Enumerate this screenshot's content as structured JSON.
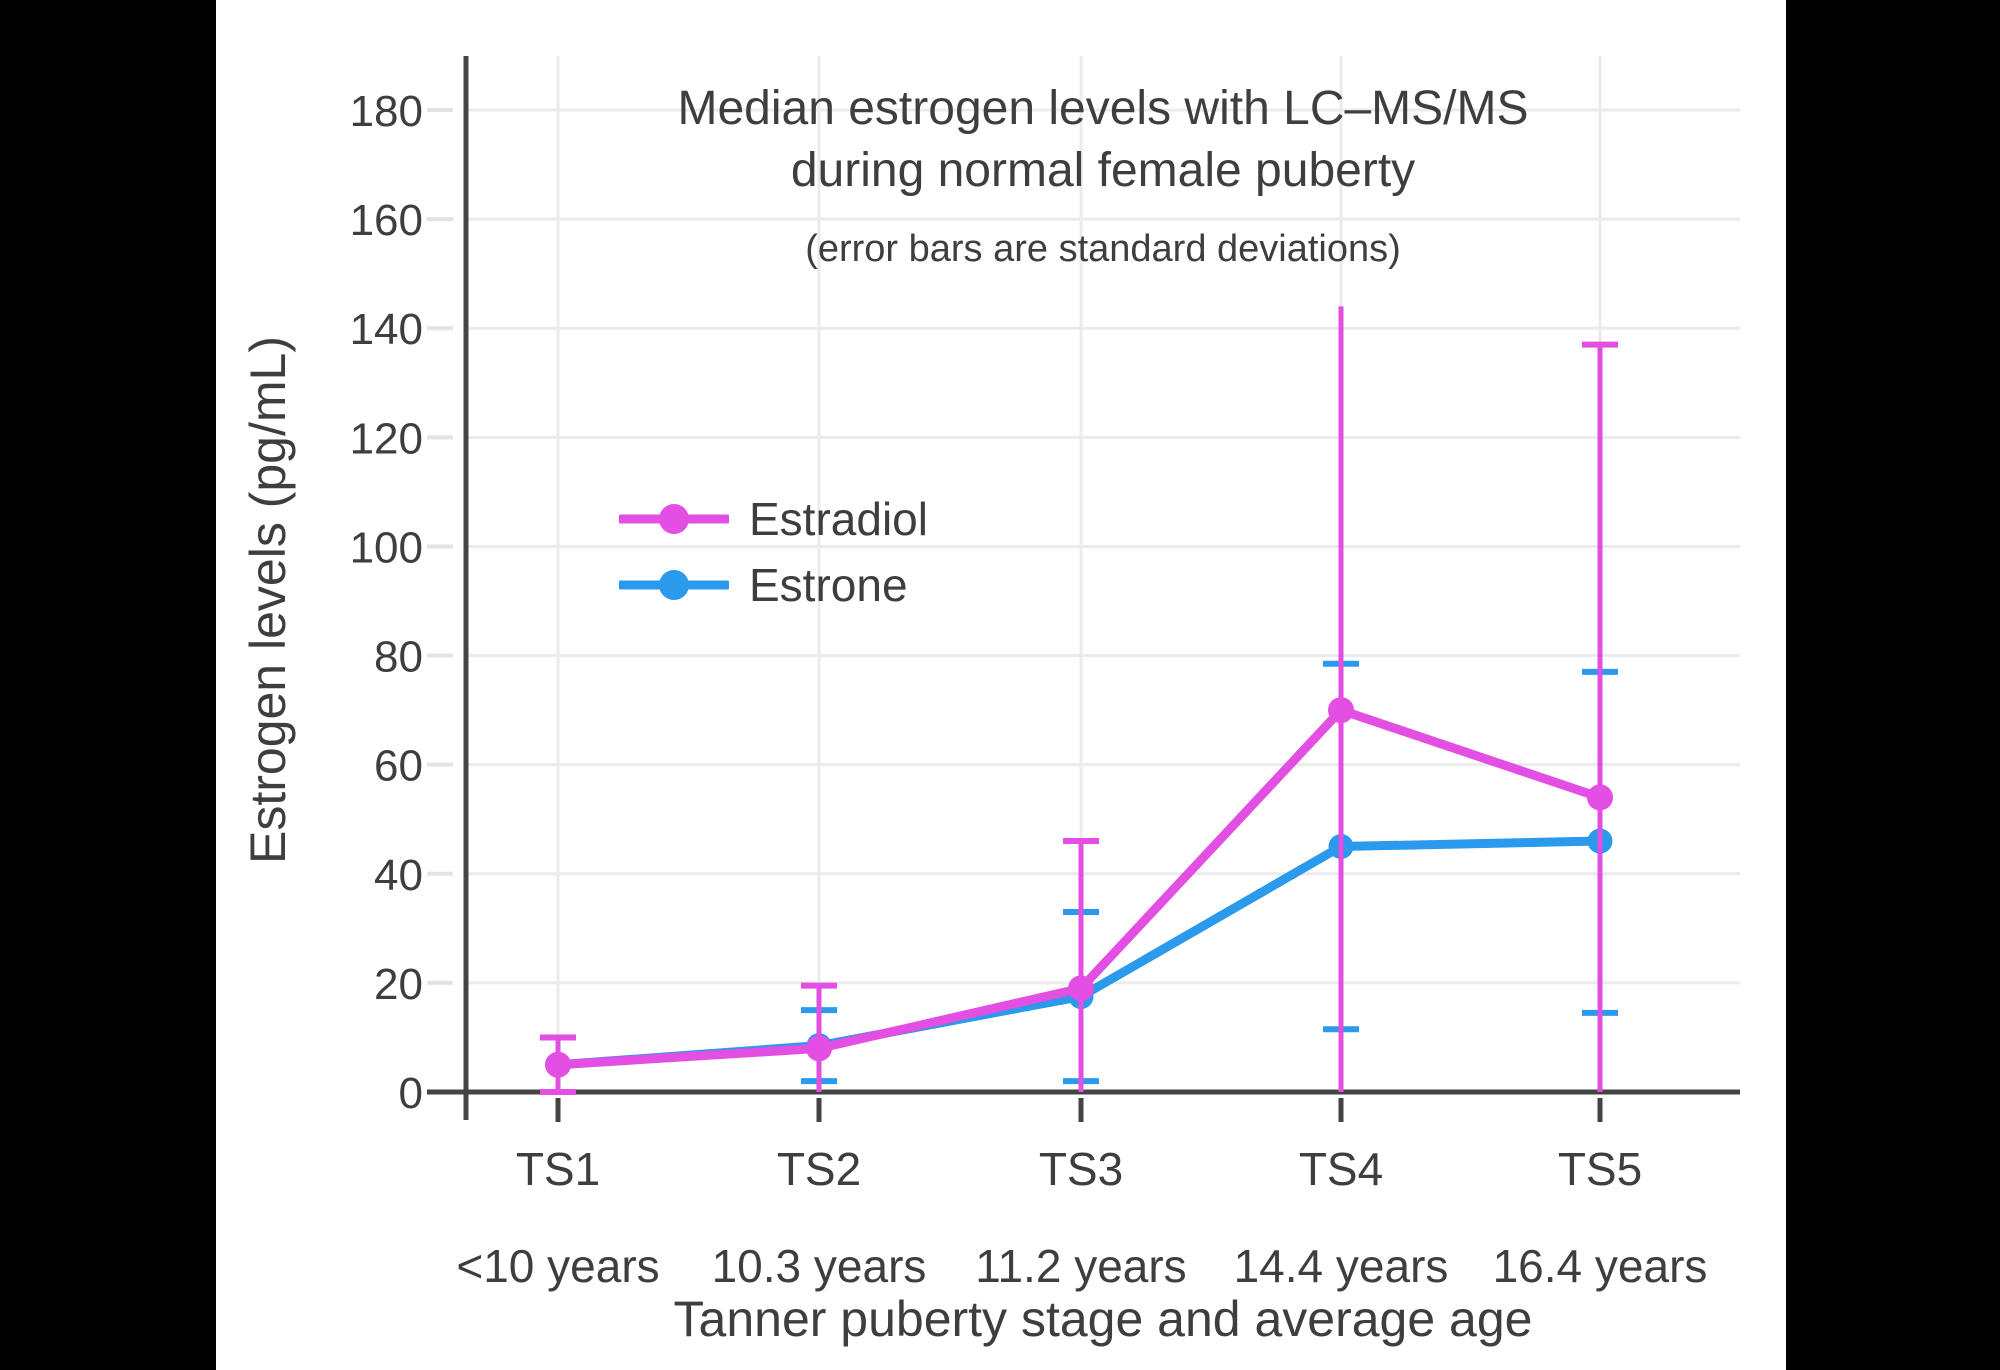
{
  "window": {
    "background": "#000000",
    "canvas_background": "#ffffff"
  },
  "chart_data": {
    "type": "line",
    "title_line1": "Median estrogen levels with LC–MS/MS",
    "title_line2": "during normal female puberty",
    "subtitle": "(error bars are standard deviations)",
    "xlabel": "Tanner puberty stage and average age",
    "ylabel": "Estrogen levels (pg/mL)",
    "categories": [
      "TS1",
      "TS2",
      "TS3",
      "TS4",
      "TS5"
    ],
    "category_ages": [
      "<10 years",
      "10.3 years",
      "11.2 years",
      "14.4 years",
      "16.4 years"
    ],
    "ylim": [
      0,
      190
    ],
    "yticks": [
      0,
      20,
      40,
      60,
      80,
      100,
      120,
      140,
      160,
      180
    ],
    "grid": true,
    "legend_position": "inside-upper-left",
    "colors": {
      "estradiol": "#e24fe2",
      "estrone": "#2b99ec",
      "text": "#3e3e3e",
      "axis": "#444444",
      "gridline": "#ebebeb"
    },
    "series": [
      {
        "name": "Estradiol",
        "color": "#e24fe2",
        "values": [
          5,
          8,
          19,
          70,
          54
        ],
        "err_high": [
          10,
          19.5,
          46,
          144,
          137
        ],
        "err_low": [
          0,
          0,
          0,
          0,
          0
        ],
        "cap_high": [
          true,
          true,
          true,
          false,
          true
        ],
        "cap_low": [
          true,
          false,
          false,
          false,
          false
        ]
      },
      {
        "name": "Estrone",
        "color": "#2b99ec",
        "values": [
          5,
          8.5,
          17.5,
          45,
          46
        ],
        "err_high": [
          null,
          15,
          33,
          78.5,
          77
        ],
        "err_low": [
          null,
          2,
          2,
          11.5,
          14.5
        ],
        "cap_high": [
          false,
          true,
          true,
          true,
          true
        ],
        "cap_low": [
          false,
          true,
          true,
          true,
          true
        ]
      }
    ]
  },
  "legend": {
    "items": [
      {
        "label": "Estradiol",
        "color": "#e24fe2"
      },
      {
        "label": "Estrone",
        "color": "#2b99ec"
      }
    ]
  }
}
